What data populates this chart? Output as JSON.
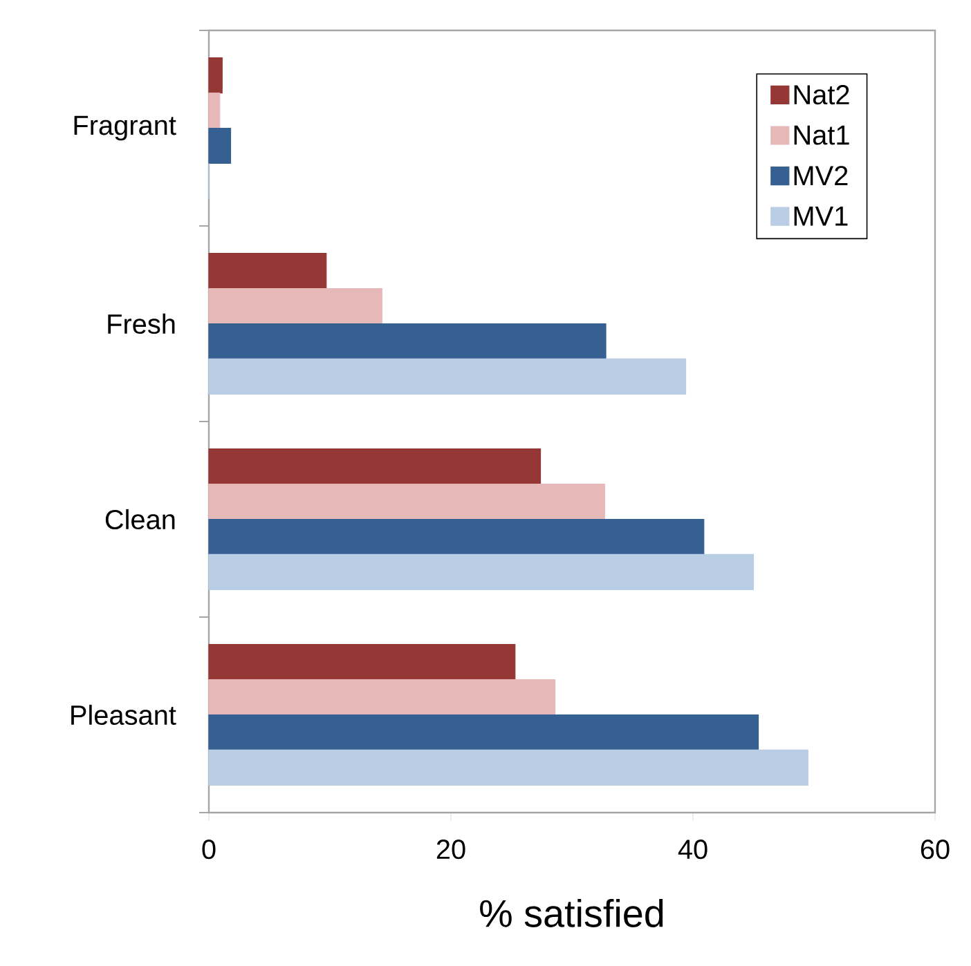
{
  "chart_data": {
    "type": "bar",
    "orientation": "horizontal",
    "xlabel": "% satisfied",
    "categories": [
      "Fragrant",
      "Fresh",
      "Clean",
      "Pleasant"
    ],
    "series": [
      {
        "name": "Nat2",
        "color": "#953735",
        "values": [
          1.1,
          9.7,
          27.4,
          25.3
        ]
      },
      {
        "name": "Nat1",
        "color": "#e6b9b8",
        "values": [
          0.9,
          14.3,
          32.7,
          28.6
        ]
      },
      {
        "name": "MV2",
        "color": "#376092",
        "values": [
          1.8,
          32.8,
          40.9,
          45.4
        ]
      },
      {
        "name": "MV1",
        "color": "#b9cde5",
        "values": [
          0,
          39.4,
          45.0,
          49.5
        ]
      }
    ],
    "xlim": [
      0,
      60
    ],
    "xticks": [
      0,
      20,
      40,
      60
    ],
    "grid": false,
    "legend": "top right"
  }
}
